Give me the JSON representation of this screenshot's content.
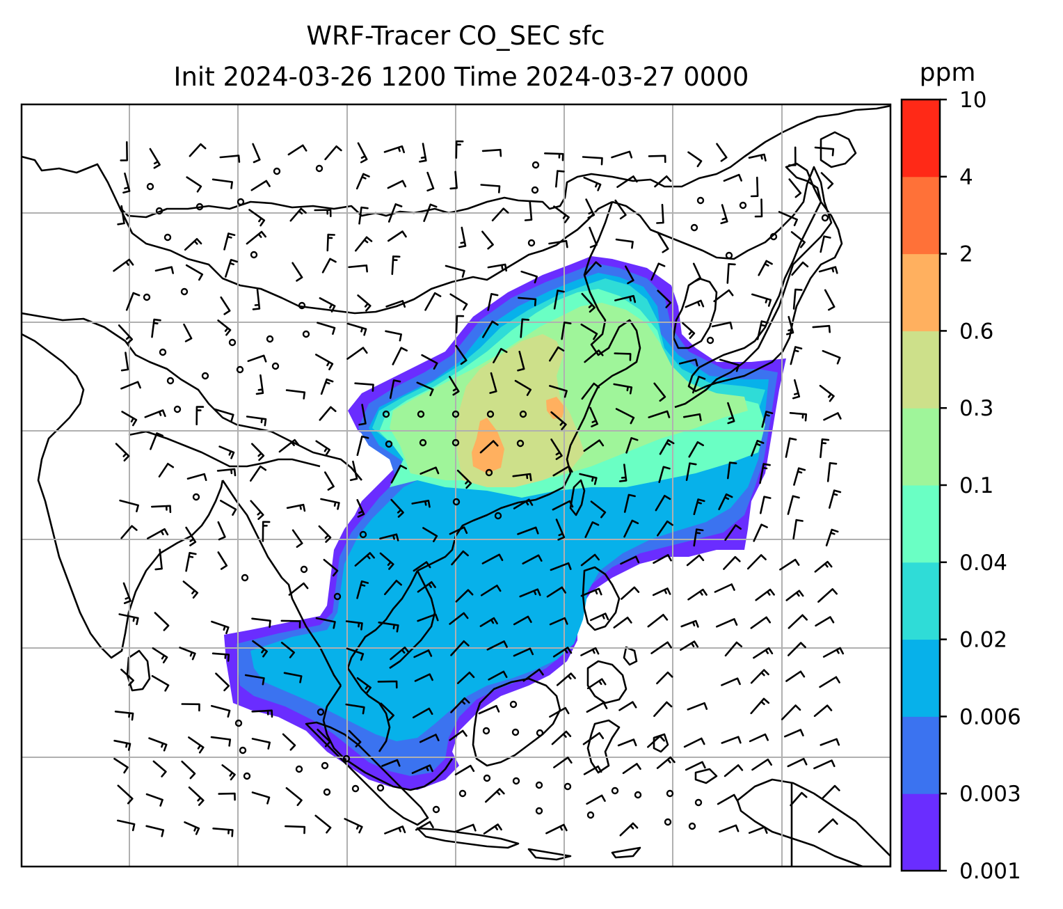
{
  "title": {
    "line1": "WRF-Tracer CO_SEC sfc",
    "line2": "Init 2024-03-26 1200 Time 2024-03-27 0000"
  },
  "colorbar": {
    "units": "ppm",
    "ticks": [
      "0.001",
      "0.003",
      "0.006",
      "0.02",
      "0.04",
      "0.1",
      "0.3",
      "0.6",
      "2",
      "4",
      "10"
    ],
    "colors": [
      "#6a2dff",
      "#3b73f0",
      "#07b1ea",
      "#2fdcd7",
      "#6affc4",
      "#9ff59a",
      "#cde08a",
      "#ffb05f",
      "#ff7138",
      "#ff2917"
    ]
  },
  "map": {
    "gridline_color": "#b0b0b0",
    "coastline_color": "#000000",
    "plume_levels_shown": [
      "0.001",
      "0.003",
      "0.006",
      "0.02",
      "0.04",
      "0.1",
      "0.3",
      "0.6"
    ]
  }
}
